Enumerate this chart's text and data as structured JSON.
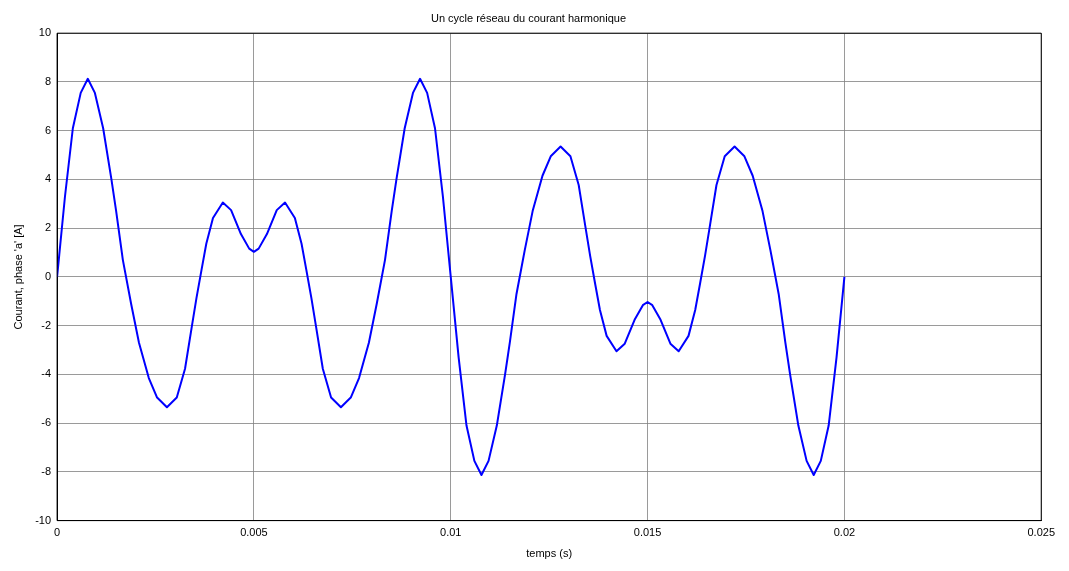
{
  "chart_data": {
    "type": "line",
    "title": "Un cycle réseau du courant harmonique",
    "xlabel": "temps (s)",
    "ylabel": "Courant, phase 'a' [A]",
    "xlim": [
      0,
      0.025
    ],
    "xticks": [
      0,
      0.005,
      0.01,
      0.015,
      0.02,
      0.025
    ],
    "ylim": [
      -10,
      10
    ],
    "yticks": [
      -10,
      -8,
      -6,
      -4,
      -2,
      0,
      2,
      4,
      6,
      8,
      10
    ],
    "grid": true,
    "legend": false,
    "marker": "none",
    "line_style": "solid",
    "series": [
      {
        "color": "#0000ff",
        "x": [
          0,
          0.0002,
          0.0004,
          0.0006,
          0.00078,
          0.00096,
          0.00117,
          0.00138,
          0.0015,
          0.00167,
          0.00188,
          0.00208,
          0.00233,
          0.00254,
          0.00279,
          0.00304,
          0.00325,
          0.00342,
          0.00354,
          0.00367,
          0.00379,
          0.00396,
          0.00421,
          0.00442,
          0.00467,
          0.00488,
          0.005,
          0.00512,
          0.00533,
          0.00558,
          0.00579,
          0.00604,
          0.00621,
          0.00633,
          0.00646,
          0.00658,
          0.00675,
          0.00696,
          0.00721,
          0.00746,
          0.00767,
          0.00792,
          0.00812,
          0.00833,
          0.0085,
          0.00862,
          0.00883,
          0.00904,
          0.00922,
          0.0094,
          0.0096,
          0.0098,
          0.01,
          0.0102,
          0.0104,
          0.0106,
          0.01078,
          0.01096,
          0.01117,
          0.01138,
          0.0115,
          0.01167,
          0.01188,
          0.01208,
          0.01233,
          0.01254,
          0.01279,
          0.01304,
          0.01325,
          0.01342,
          0.01354,
          0.01367,
          0.01379,
          0.01396,
          0.01421,
          0.01442,
          0.01467,
          0.01488,
          0.015,
          0.01512,
          0.01533,
          0.01558,
          0.01579,
          0.01604,
          0.01621,
          0.01633,
          0.01646,
          0.01658,
          0.01675,
          0.01696,
          0.01721,
          0.01746,
          0.01767,
          0.01792,
          0.01812,
          0.01833,
          0.0185,
          0.01862,
          0.01883,
          0.01904,
          0.01922,
          0.0194,
          0.0196,
          0.0198,
          0.02
        ],
        "values": [
          0,
          3.3,
          6.1,
          7.55,
          8.13,
          7.55,
          6.1,
          4.0,
          2.7,
          0.7,
          -1.1,
          -2.7,
          -4.15,
          -4.95,
          -5.35,
          -4.95,
          -3.77,
          -2.06,
          -0.87,
          0.3,
          1.36,
          2.42,
          3.05,
          2.74,
          1.76,
          1.16,
          1.03,
          1.16,
          1.76,
          2.74,
          3.05,
          2.42,
          1.36,
          0.3,
          -0.87,
          -2.06,
          -3.77,
          -4.95,
          -5.35,
          -4.95,
          -4.15,
          -2.7,
          -1.1,
          0.7,
          2.7,
          4.0,
          6.1,
          7.55,
          8.13,
          7.55,
          6.1,
          3.3,
          0,
          -3.3,
          -6.1,
          -7.55,
          -8.13,
          -7.55,
          -6.1,
          -4.0,
          -2.7,
          -0.7,
          1.1,
          2.7,
          4.15,
          4.95,
          5.35,
          4.95,
          3.77,
          2.06,
          0.87,
          -0.3,
          -1.36,
          -2.42,
          -3.05,
          -2.74,
          -1.76,
          -1.16,
          -1.03,
          -1.16,
          -1.76,
          -2.74,
          -3.05,
          -2.42,
          -1.36,
          -0.3,
          0.87,
          2.06,
          3.77,
          4.95,
          5.35,
          4.95,
          4.15,
          2.7,
          1.1,
          -0.7,
          -2.7,
          -4.0,
          -6.1,
          -7.55,
          -8.13,
          -7.55,
          -6.1,
          -3.3,
          0
        ]
      }
    ]
  }
}
